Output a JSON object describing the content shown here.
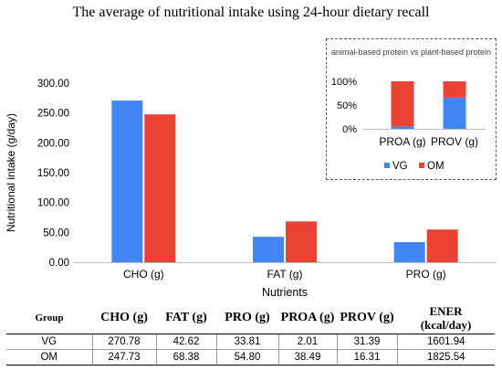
{
  "figure": {
    "title": "The average of  nutritional intake using 24-hour dietary recall"
  },
  "colors": {
    "VG": "#4285f4",
    "OM": "#ea4335"
  },
  "chart_data": [
    {
      "type": "bar",
      "title": "",
      "categories": [
        "CHO (g)",
        "FAT (g)",
        "PRO (g)"
      ],
      "series": [
        {
          "name": "VG",
          "values": [
            270.78,
            42.62,
            33.81
          ]
        },
        {
          "name": "OM",
          "values": [
            247.73,
            68.38,
            54.8
          ]
        }
      ],
      "xlabel": "Nutrients",
      "ylabel": "Nutritional intake (g/day)",
      "ylim": [
        0,
        300
      ],
      "yticks": [
        "0.00",
        "50.00",
        "100.00",
        "150.00",
        "200.00",
        "250.00",
        "300.00"
      ],
      "grid": false,
      "legend": "none"
    },
    {
      "type": "bar",
      "stacked": "percent",
      "title": "animal-based protein vs plant-based protein",
      "categories": [
        "PROA (g)",
        "PROV (g)"
      ],
      "series": [
        {
          "name": "VG",
          "values": [
            2.01,
            31.39
          ]
        },
        {
          "name": "OM",
          "values": [
            38.49,
            16.31
          ]
        }
      ],
      "ylim": [
        0,
        100
      ],
      "yticks": [
        "0%",
        "50%",
        "100%"
      ],
      "legend": "bottom"
    }
  ],
  "table": {
    "headers": [
      "Group",
      "CHO (g)",
      "FAT (g)",
      "PRO (g)",
      "PROA (g)",
      "PROV (g)",
      "ENER"
    ],
    "ener_unit": "(kcal/day)",
    "rows": [
      [
        "VG",
        "270.78",
        "42.62",
        "33.81",
        "2.01",
        "31.39",
        "1601.94"
      ],
      [
        "OM",
        "247.73",
        "68.38",
        "54.80",
        "38.49",
        "16.31",
        "1825.54"
      ]
    ]
  }
}
